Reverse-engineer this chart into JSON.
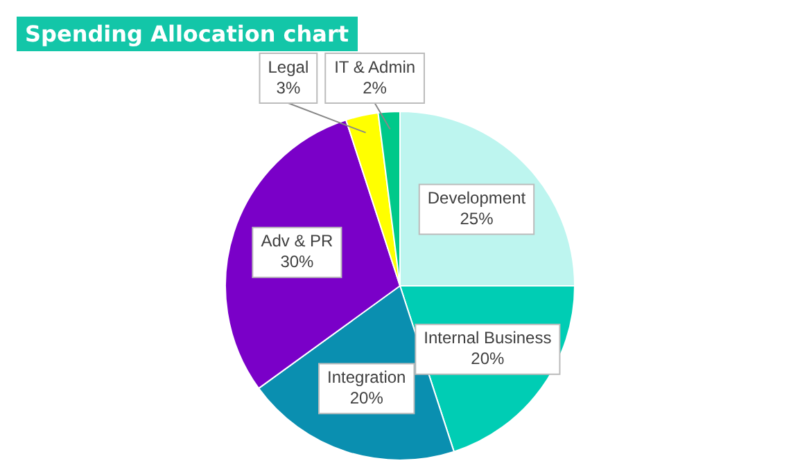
{
  "chart_data": {
    "type": "pie",
    "title": "Spending Allocation chart",
    "categories": [
      "Development",
      "Internal Business",
      "Integration",
      "Adv & PR",
      "Legal",
      "IT & Admin"
    ],
    "values": [
      25,
      20,
      20,
      30,
      3,
      2
    ],
    "colors": [
      "#bdf5ef",
      "#00cdb4",
      "#0a8fb0",
      "#7a00c8",
      "#ffff00",
      "#00c98a"
    ],
    "value_labels": [
      "25%",
      "20%",
      "20%",
      "30%",
      "3%",
      "2%"
    ]
  }
}
